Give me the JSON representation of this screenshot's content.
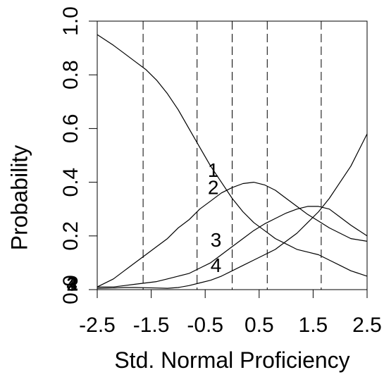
{
  "chart_data": {
    "type": "line",
    "xlabel": "Std. Normal Proficiency",
    "ylabel": "Probability",
    "xlim": [
      -2.5,
      2.5
    ],
    "ylim": [
      0,
      1
    ],
    "x_ticks": [
      -2.5,
      -1.5,
      -0.5,
      0.5,
      1.5,
      2.5
    ],
    "x_tick_labels": [
      "-2.5",
      "-1.5",
      "-0.5",
      "0.5",
      "1.5",
      "2.5"
    ],
    "y_ticks": [
      0,
      0.2,
      0.4,
      0.6,
      0.8,
      1.0
    ],
    "y_tick_labels": [
      "0.0",
      "0.2",
      "0.4",
      "0.6",
      "0.8",
      "1.0"
    ],
    "grid": false,
    "vertical_reference_lines": [
      -1.65,
      -0.65,
      0.0,
      0.65,
      1.65
    ],
    "series": [
      {
        "name": "1",
        "x": [
          -2.5,
          -2.2,
          -2.0,
          -1.8,
          -1.6,
          -1.4,
          -1.2,
          -1.0,
          -0.8,
          -0.6,
          -0.4,
          -0.2,
          0.0,
          0.2,
          0.4,
          0.6,
          0.8,
          1.0,
          1.2,
          1.4,
          1.6,
          1.8,
          2.0,
          2.2,
          2.5
        ],
        "y": [
          0.95,
          0.91,
          0.88,
          0.85,
          0.82,
          0.78,
          0.73,
          0.67,
          0.6,
          0.53,
          0.46,
          0.4,
          0.34,
          0.29,
          0.25,
          0.22,
          0.19,
          0.17,
          0.15,
          0.14,
          0.13,
          0.11,
          0.09,
          0.07,
          0.05
        ]
      },
      {
        "name": "2",
        "x": [
          -2.5,
          -2.2,
          -2.0,
          -1.8,
          -1.6,
          -1.4,
          -1.2,
          -1.0,
          -0.8,
          -0.6,
          -0.4,
          -0.2,
          0.0,
          0.2,
          0.4,
          0.6,
          0.8,
          1.0,
          1.2,
          1.4,
          1.6,
          1.8,
          2.0,
          2.2,
          2.5
        ],
        "y": [
          0.01,
          0.04,
          0.07,
          0.1,
          0.13,
          0.16,
          0.19,
          0.23,
          0.26,
          0.3,
          0.33,
          0.36,
          0.38,
          0.395,
          0.4,
          0.39,
          0.37,
          0.34,
          0.31,
          0.28,
          0.255,
          0.23,
          0.21,
          0.19,
          0.18
        ]
      },
      {
        "name": "3",
        "x": [
          -2.5,
          -2.2,
          -2.0,
          -1.8,
          -1.6,
          -1.4,
          -1.2,
          -1.0,
          -0.8,
          -0.6,
          -0.4,
          -0.2,
          0.0,
          0.2,
          0.4,
          0.6,
          0.8,
          1.0,
          1.2,
          1.4,
          1.6,
          1.8,
          2.0,
          2.2,
          2.5
        ],
        "y": [
          0.01,
          0.01,
          0.015,
          0.02,
          0.025,
          0.03,
          0.04,
          0.05,
          0.06,
          0.08,
          0.1,
          0.13,
          0.16,
          0.19,
          0.22,
          0.245,
          0.265,
          0.285,
          0.3,
          0.31,
          0.31,
          0.3,
          0.27,
          0.24,
          0.2
        ]
      },
      {
        "name": "4",
        "x": [
          -2.5,
          -2.2,
          -2.0,
          -1.8,
          -1.6,
          -1.4,
          -1.2,
          -1.0,
          -0.8,
          -0.6,
          -0.4,
          -0.2,
          0.0,
          0.2,
          0.4,
          0.6,
          0.8,
          1.0,
          1.2,
          1.4,
          1.6,
          1.8,
          2.0,
          2.2,
          2.5
        ],
        "y": [
          0.005,
          0.006,
          0.008,
          0.008,
          0.007,
          0.006,
          0.005,
          0.008,
          0.015,
          0.025,
          0.035,
          0.05,
          0.07,
          0.09,
          0.11,
          0.13,
          0.15,
          0.18,
          0.21,
          0.25,
          0.29,
          0.34,
          0.4,
          0.46,
          0.58
        ]
      }
    ],
    "curve_labels": [
      {
        "text": "1",
        "x": -0.35,
        "y": 0.44
      },
      {
        "text": "2",
        "x": -0.35,
        "y": 0.375
      },
      {
        "text": "3",
        "x": -0.3,
        "y": 0.18
      },
      {
        "text": "4",
        "x": -0.3,
        "y": 0.085
      },
      {
        "text": "1",
        "x": -2.97,
        "y": 0.015
      },
      {
        "text": "2",
        "x": -2.97,
        "y": 0.015
      },
      {
        "text": "3",
        "x": -2.97,
        "y": 0.015
      },
      {
        "text": "4",
        "x": -2.97,
        "y": 0.015
      }
    ]
  }
}
